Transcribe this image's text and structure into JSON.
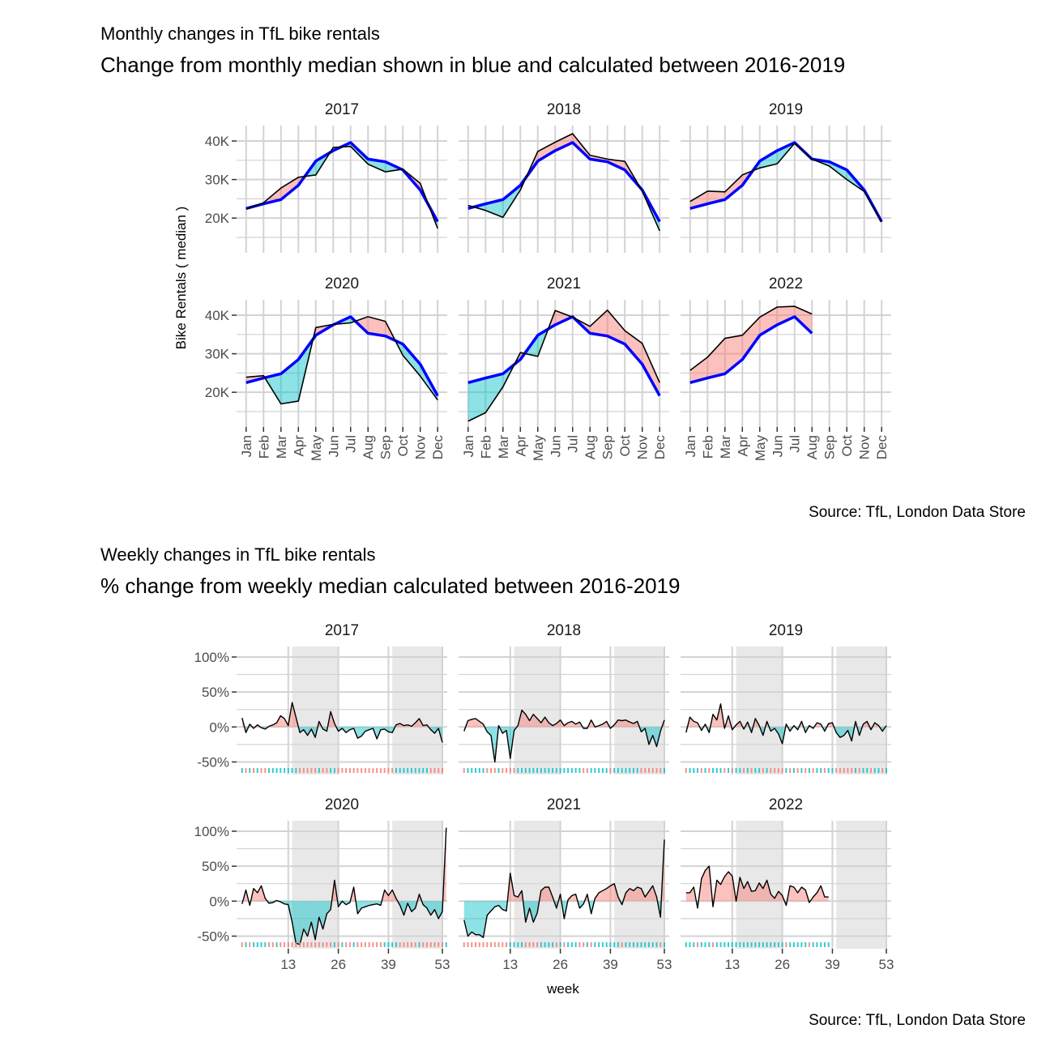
{
  "colors": {
    "positive_fill": "#00BFC4",
    "negative_fill": "#F8766D",
    "median_line": "#0000FF",
    "actual_line": "#000000",
    "grid": "#D3D3D3",
    "shade": "#E8E8E8"
  },
  "chart_data": [
    {
      "type": "area",
      "title": "Monthly changes in TfL bike rentals",
      "subtitle": "Change from monthly  median  shown in blue and calculated between 2016-2019",
      "ylabel": "Bike Rentals ( median )",
      "xlabel": "",
      "caption": "Source: TfL, London Data Store",
      "ylim": [
        11000,
        44000
      ],
      "y_ticks": [
        20000,
        30000,
        40000
      ],
      "y_tick_labels": [
        "20K",
        "30K",
        "40K"
      ],
      "categories": [
        "Jan",
        "Feb",
        "Mar",
        "Apr",
        "May",
        "Jun",
        "Jul",
        "Aug",
        "Sep",
        "Oct",
        "Nov",
        "Dec"
      ],
      "median": [
        22500,
        23700,
        24800,
        28500,
        34800,
        37500,
        39600,
        35300,
        34600,
        32500,
        27300,
        19100
      ],
      "grid": true,
      "panels": [
        {
          "label": "2017",
          "values": [
            22300,
            24000,
            27800,
            30600,
            31200,
            38300,
            38600,
            34000,
            32000,
            32700,
            29000,
            17300
          ]
        },
        {
          "label": "2018",
          "values": [
            23300,
            22000,
            20200,
            27300,
            37300,
            39700,
            41900,
            36300,
            35300,
            34700,
            27000,
            16700
          ]
        },
        {
          "label": "2019",
          "values": [
            24300,
            27000,
            26800,
            31200,
            33000,
            34100,
            39400,
            35300,
            33500,
            30000,
            26900,
            19000
          ]
        },
        {
          "label": "2020",
          "values": [
            23900,
            24300,
            17000,
            17700,
            36800,
            37600,
            38000,
            39600,
            38400,
            29600,
            24200,
            18000
          ]
        },
        {
          "label": "2021",
          "values": [
            12500,
            14700,
            21400,
            30300,
            29300,
            41200,
            39500,
            37100,
            41300,
            36000,
            32700,
            22500
          ]
        },
        {
          "label": "2022",
          "values": [
            25700,
            29100,
            34000,
            34800,
            39500,
            42100,
            42300,
            40300
          ]
        }
      ]
    },
    {
      "type": "area",
      "title": "Weekly changes in TfL bike rentals",
      "subtitle": "% change from weekly median calculated between 2016-2019",
      "xlabel": "week",
      "ylabel": "",
      "caption": "Source: TfL, London Data Store",
      "ylim": [
        -68,
        115
      ],
      "xlim": [
        0,
        53
      ],
      "x_ticks": [
        13,
        26,
        39,
        53
      ],
      "y_ticks": [
        -50,
        0,
        50,
        100
      ],
      "y_tick_labels": [
        "-50%",
        "0%",
        "50%",
        "100%"
      ],
      "shaded_week_ranges": [
        [
          14,
          26
        ],
        [
          40,
          53
        ]
      ],
      "grid": true,
      "panels": [
        {
          "label": "2017",
          "values": [
            13,
            -8,
            4,
            -2,
            3,
            -1,
            -3,
            1,
            3,
            6,
            16,
            12,
            2,
            35,
            14,
            -8,
            -4,
            -12,
            -3,
            -15,
            8,
            -3,
            -6,
            22,
            5,
            -6,
            -2,
            -8,
            -4,
            -2,
            -16,
            -13,
            -6,
            -4,
            -2,
            -17,
            -4,
            -3,
            -7,
            -8,
            3,
            5,
            2,
            3,
            1,
            6,
            12,
            2,
            3,
            -4,
            -9,
            -2,
            -22
          ]
        },
        {
          "label": "2018",
          "values": [
            -6,
            9,
            11,
            12,
            8,
            4,
            -7,
            -12,
            -50,
            2,
            -9,
            -5,
            -45,
            -5,
            2,
            24,
            18,
            9,
            18,
            12,
            6,
            14,
            6,
            2,
            5,
            10,
            2,
            6,
            8,
            4,
            7,
            -2,
            -2,
            10,
            0,
            2,
            4,
            8,
            -2,
            3,
            10,
            9,
            10,
            7,
            5,
            8,
            -7,
            -2,
            -25,
            -12,
            -28,
            -6,
            10
          ]
        },
        {
          "label": "2019",
          "values": [
            -8,
            14,
            8,
            6,
            -5,
            4,
            -8,
            18,
            10,
            33,
            -2,
            16,
            -4,
            3,
            8,
            -3,
            7,
            -8,
            12,
            2,
            -12,
            8,
            -6,
            -2,
            -10,
            -24,
            4,
            -6,
            2,
            -4,
            8,
            -8,
            2,
            -2,
            6,
            4,
            -6,
            5,
            6,
            -8,
            -15,
            -12,
            -5,
            -20,
            8,
            -12,
            4,
            8,
            -4,
            6,
            2,
            -6,
            2
          ]
        },
        {
          "label": "2020",
          "values": [
            -4,
            16,
            -6,
            18,
            12,
            22,
            4,
            -3,
            -2,
            1,
            -1,
            -4,
            -5,
            -30,
            -60,
            -62,
            -40,
            -50,
            -30,
            -55,
            -23,
            -40,
            -18,
            -12,
            30,
            -8,
            0,
            -5,
            -2,
            20,
            -18,
            -10,
            -8,
            -6,
            -5,
            -4,
            -6,
            16,
            8,
            16,
            4,
            -6,
            -20,
            -3,
            -15,
            -10,
            10,
            -5,
            -10,
            -20,
            -12,
            -25,
            -15,
            105
          ]
        },
        {
          "label": "2021",
          "values": [
            -27,
            -50,
            -44,
            -48,
            -48,
            -52,
            -20,
            -14,
            -8,
            -6,
            -12,
            -14,
            40,
            8,
            6,
            15,
            -30,
            -10,
            -30,
            -17,
            15,
            20,
            20,
            6,
            -10,
            10,
            -25,
            2,
            8,
            10,
            -10,
            -4,
            10,
            -18,
            4,
            12,
            15,
            18,
            22,
            25,
            6,
            -5,
            12,
            18,
            15,
            20,
            18,
            6,
            14,
            22,
            6,
            -23,
            88
          ]
        },
        {
          "label": "2022",
          "values": [
            12,
            12,
            20,
            -10,
            32,
            44,
            50,
            -8,
            30,
            24,
            35,
            42,
            36,
            0,
            34,
            18,
            28,
            14,
            15,
            26,
            18,
            30,
            10,
            4,
            14,
            8,
            -6,
            22,
            20,
            12,
            20,
            16,
            -2,
            6,
            12,
            22,
            6,
            6
          ]
        }
      ]
    }
  ]
}
